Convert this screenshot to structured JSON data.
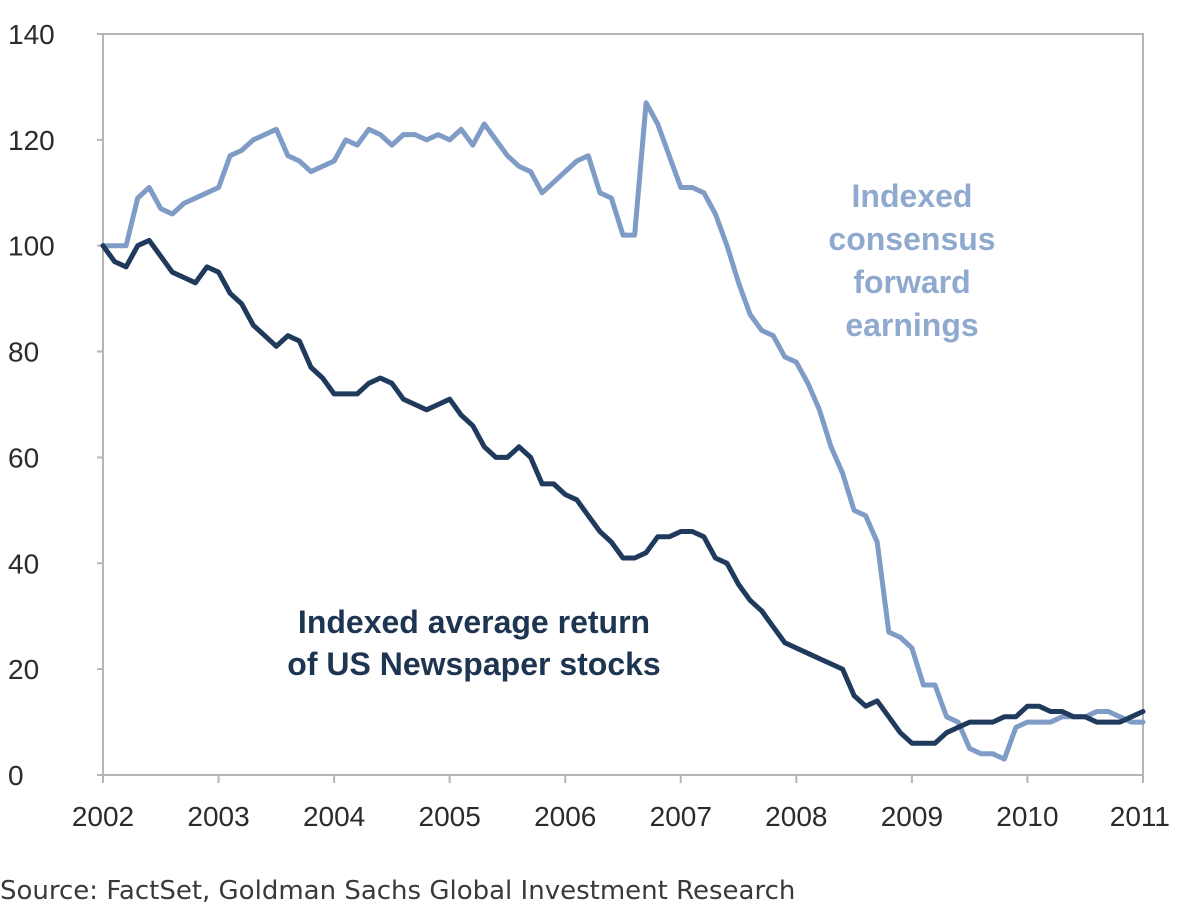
{
  "chart_data": {
    "type": "line",
    "title": "",
    "xlabel": "",
    "ylabel": "",
    "xlim": [
      2002,
      2011
    ],
    "ylim": [
      0,
      140
    ],
    "grid": false,
    "x_ticks": [
      "2002",
      "2003",
      "2004",
      "2005",
      "2006",
      "2007",
      "2008",
      "2009",
      "2010",
      "2011"
    ],
    "y_ticks": [
      "0",
      "20",
      "40",
      "60",
      "80",
      "100",
      "120",
      "140"
    ],
    "series": [
      {
        "name": "Indexed consensus forward earnings",
        "color": "#7f9cc6",
        "points": [
          [
            2002.0,
            100
          ],
          [
            2002.1,
            100
          ],
          [
            2002.2,
            100
          ],
          [
            2002.3,
            109
          ],
          [
            2002.4,
            111
          ],
          [
            2002.5,
            107
          ],
          [
            2002.6,
            106
          ],
          [
            2002.7,
            108
          ],
          [
            2002.8,
            109
          ],
          [
            2002.9,
            110
          ],
          [
            2003.0,
            111
          ],
          [
            2003.1,
            117
          ],
          [
            2003.2,
            118
          ],
          [
            2003.3,
            120
          ],
          [
            2003.4,
            121
          ],
          [
            2003.5,
            122
          ],
          [
            2003.6,
            117
          ],
          [
            2003.7,
            116
          ],
          [
            2003.8,
            114
          ],
          [
            2003.9,
            115
          ],
          [
            2004.0,
            116
          ],
          [
            2004.1,
            120
          ],
          [
            2004.2,
            119
          ],
          [
            2004.3,
            122
          ],
          [
            2004.4,
            121
          ],
          [
            2004.5,
            119
          ],
          [
            2004.6,
            121
          ],
          [
            2004.7,
            121
          ],
          [
            2004.8,
            120
          ],
          [
            2004.9,
            121
          ],
          [
            2005.0,
            120
          ],
          [
            2005.1,
            122
          ],
          [
            2005.2,
            119
          ],
          [
            2005.3,
            123
          ],
          [
            2005.4,
            120
          ],
          [
            2005.5,
            117
          ],
          [
            2005.6,
            115
          ],
          [
            2005.7,
            114
          ],
          [
            2005.8,
            110
          ],
          [
            2005.9,
            112
          ],
          [
            2006.0,
            114
          ],
          [
            2006.1,
            116
          ],
          [
            2006.2,
            117
          ],
          [
            2006.3,
            110
          ],
          [
            2006.4,
            109
          ],
          [
            2006.5,
            102
          ],
          [
            2006.6,
            102
          ],
          [
            2006.7,
            127
          ],
          [
            2006.8,
            123
          ],
          [
            2006.9,
            117
          ],
          [
            2007.0,
            111
          ],
          [
            2007.1,
            111
          ],
          [
            2007.2,
            110
          ],
          [
            2007.3,
            106
          ],
          [
            2007.4,
            100
          ],
          [
            2007.5,
            93
          ],
          [
            2007.6,
            87
          ],
          [
            2007.7,
            84
          ],
          [
            2007.8,
            83
          ],
          [
            2007.9,
            79
          ],
          [
            2008.0,
            78
          ],
          [
            2008.1,
            74
          ],
          [
            2008.2,
            69
          ],
          [
            2008.3,
            62
          ],
          [
            2008.4,
            57
          ],
          [
            2008.5,
            50
          ],
          [
            2008.6,
            49
          ],
          [
            2008.7,
            44
          ],
          [
            2008.8,
            27
          ],
          [
            2008.9,
            26
          ],
          [
            2009.0,
            24
          ],
          [
            2009.1,
            17
          ],
          [
            2009.2,
            17
          ],
          [
            2009.3,
            11
          ],
          [
            2009.4,
            10
          ],
          [
            2009.5,
            5
          ],
          [
            2009.6,
            4
          ],
          [
            2009.7,
            4
          ],
          [
            2009.8,
            3
          ],
          [
            2009.9,
            9
          ],
          [
            2010.0,
            10
          ],
          [
            2010.1,
            10
          ],
          [
            2010.2,
            10
          ],
          [
            2010.3,
            11
          ],
          [
            2010.4,
            11
          ],
          [
            2010.5,
            11
          ],
          [
            2010.6,
            12
          ],
          [
            2010.7,
            12
          ],
          [
            2010.8,
            11
          ],
          [
            2010.9,
            10
          ],
          [
            2011.0,
            10
          ]
        ]
      },
      {
        "name": "Indexed average return of US Newspaper stocks",
        "color": "#1f3a5c",
        "points": [
          [
            2002.0,
            100
          ],
          [
            2002.1,
            97
          ],
          [
            2002.2,
            96
          ],
          [
            2002.3,
            100
          ],
          [
            2002.4,
            101
          ],
          [
            2002.5,
            98
          ],
          [
            2002.6,
            95
          ],
          [
            2002.7,
            94
          ],
          [
            2002.8,
            93
          ],
          [
            2002.9,
            96
          ],
          [
            2003.0,
            95
          ],
          [
            2003.1,
            91
          ],
          [
            2003.2,
            89
          ],
          [
            2003.3,
            85
          ],
          [
            2003.4,
            83
          ],
          [
            2003.5,
            81
          ],
          [
            2003.6,
            83
          ],
          [
            2003.7,
            82
          ],
          [
            2003.8,
            77
          ],
          [
            2003.9,
            75
          ],
          [
            2004.0,
            72
          ],
          [
            2004.1,
            72
          ],
          [
            2004.2,
            72
          ],
          [
            2004.3,
            74
          ],
          [
            2004.4,
            75
          ],
          [
            2004.5,
            74
          ],
          [
            2004.6,
            71
          ],
          [
            2004.7,
            70
          ],
          [
            2004.8,
            69
          ],
          [
            2004.9,
            70
          ],
          [
            2005.0,
            71
          ],
          [
            2005.1,
            68
          ],
          [
            2005.2,
            66
          ],
          [
            2005.3,
            62
          ],
          [
            2005.4,
            60
          ],
          [
            2005.5,
            60
          ],
          [
            2005.6,
            62
          ],
          [
            2005.7,
            60
          ],
          [
            2005.8,
            55
          ],
          [
            2005.9,
            55
          ],
          [
            2006.0,
            53
          ],
          [
            2006.1,
            52
          ],
          [
            2006.2,
            49
          ],
          [
            2006.3,
            46
          ],
          [
            2006.4,
            44
          ],
          [
            2006.5,
            41
          ],
          [
            2006.6,
            41
          ],
          [
            2006.7,
            42
          ],
          [
            2006.8,
            45
          ],
          [
            2006.9,
            45
          ],
          [
            2007.0,
            46
          ],
          [
            2007.1,
            46
          ],
          [
            2007.2,
            45
          ],
          [
            2007.3,
            41
          ],
          [
            2007.4,
            40
          ],
          [
            2007.5,
            36
          ],
          [
            2007.6,
            33
          ],
          [
            2007.7,
            31
          ],
          [
            2007.8,
            28
          ],
          [
            2007.9,
            25
          ],
          [
            2008.0,
            24
          ],
          [
            2008.1,
            23
          ],
          [
            2008.2,
            22
          ],
          [
            2008.3,
            21
          ],
          [
            2008.4,
            20
          ],
          [
            2008.5,
            15
          ],
          [
            2008.6,
            13
          ],
          [
            2008.7,
            14
          ],
          [
            2008.8,
            11
          ],
          [
            2008.9,
            8
          ],
          [
            2009.0,
            6
          ],
          [
            2009.1,
            6
          ],
          [
            2009.2,
            6
          ],
          [
            2009.3,
            8
          ],
          [
            2009.4,
            9
          ],
          [
            2009.5,
            10
          ],
          [
            2009.6,
            10
          ],
          [
            2009.7,
            10
          ],
          [
            2009.8,
            11
          ],
          [
            2009.9,
            11
          ],
          [
            2010.0,
            13
          ],
          [
            2010.1,
            13
          ],
          [
            2010.2,
            12
          ],
          [
            2010.3,
            12
          ],
          [
            2010.4,
            11
          ],
          [
            2010.5,
            11
          ],
          [
            2010.6,
            10
          ],
          [
            2010.7,
            10
          ],
          [
            2010.8,
            10
          ],
          [
            2010.9,
            11
          ],
          [
            2011.0,
            12
          ]
        ]
      }
    ],
    "annotations": [
      {
        "series": "Indexed consensus forward earnings",
        "lines": [
          "Indexed",
          "consensus",
          "forward",
          "earnings"
        ]
      },
      {
        "series": "Indexed average return of US Newspaper stocks",
        "lines": [
          "Indexed average return",
          "of US Newspaper stocks"
        ]
      }
    ]
  },
  "source_text": "Source: FactSet, Goldman Sachs Global Investment Research"
}
